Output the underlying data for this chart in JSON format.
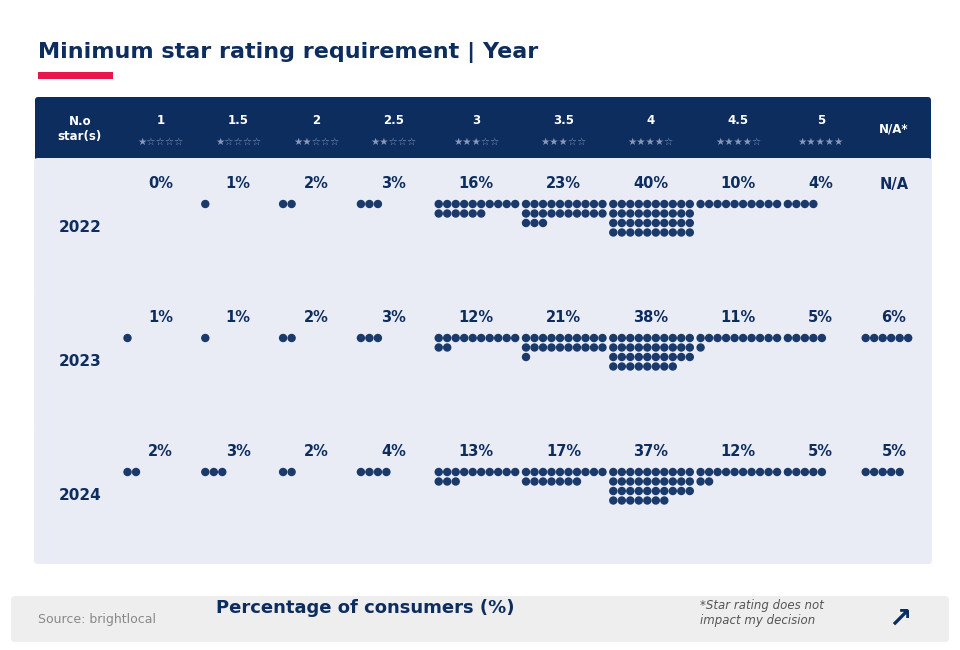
{
  "title": "Minimum star rating requirement | Year",
  "header_bg": "#0d2d5e",
  "header_text_color": "#ffffff",
  "row_bg": "#eaecf5",
  "outer_bg": "#ffffff",
  "dot_color": "#1a3a6b",
  "col_labels": [
    "N.o\nstar(s)",
    "1",
    "1.5",
    "2",
    "2.5",
    "3",
    "3.5",
    "4",
    "4.5",
    "5",
    "N/A*"
  ],
  "star_labels": [
    "",
    "★☆☆☆☆",
    "★☆☆☆☆",
    "★★☆☆☆",
    "★★☆☆☆",
    "★★★☆☆",
    "★★★☆☆",
    "★★★★☆",
    "★★★★☆",
    "★★★★★",
    ""
  ],
  "years": [
    "2022",
    "2023",
    "2024"
  ],
  "data": {
    "2022": [
      0,
      1,
      2,
      3,
      16,
      23,
      40,
      10,
      4,
      null
    ],
    "2023": [
      1,
      1,
      2,
      3,
      12,
      21,
      38,
      11,
      5,
      6
    ],
    "2024": [
      2,
      3,
      2,
      4,
      13,
      17,
      37,
      12,
      5,
      5
    ]
  },
  "display": {
    "2022": [
      "0%",
      "1%",
      "2%",
      "3%",
      "16%",
      "23%",
      "40%",
      "10%",
      "4%",
      "N/A"
    ],
    "2023": [
      "1%",
      "1%",
      "2%",
      "3%",
      "12%",
      "21%",
      "38%",
      "11%",
      "5%",
      "6%"
    ],
    "2024": [
      "2%",
      "3%",
      "2%",
      "4%",
      "13%",
      "17%",
      "37%",
      "12%",
      "5%",
      "5%"
    ]
  },
  "x_label": "Percentage of consumers (%)",
  "footnote": "*Star rating does not\nimpact my decision",
  "source": "Source: brightlocal",
  "red_bar_color": "#e8174b"
}
